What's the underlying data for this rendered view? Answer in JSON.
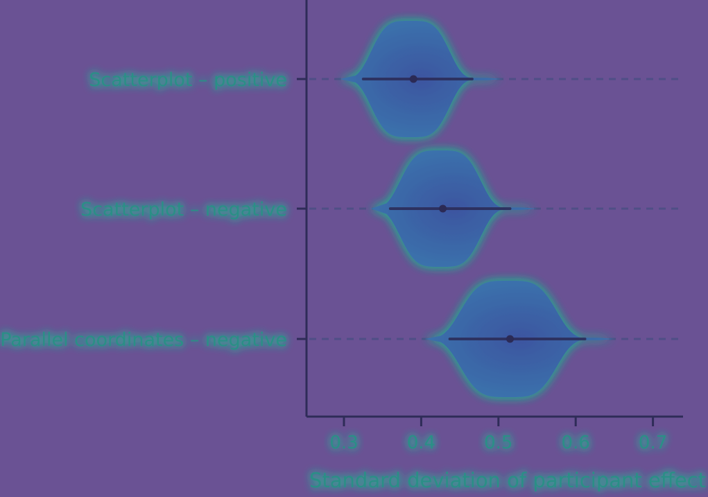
{
  "colors": {
    "background": "#6a5294",
    "axis": "#2f2c58",
    "violin": "#3a6aa6",
    "violin_core": "#3c5aa0",
    "glow": "#2aa58f",
    "text": "#2c8f86",
    "interval": "#2b2a55",
    "gridline": "#4f4f86"
  },
  "chart_data": {
    "type": "violin",
    "title": "",
    "xlabel": "Standard deviation of participant effect",
    "ylabel": "",
    "xlim": [
      0.25,
      0.74
    ],
    "xticks": [
      0.3,
      0.4,
      0.5,
      0.6,
      0.7
    ],
    "xtick_labels": [
      "0.3",
      "0.4",
      "0.5",
      "0.6",
      "0.7"
    ],
    "grid": "dashed horizontal guide per category",
    "categories": [
      "Scatterplot – positive",
      "Scatterplot – negative",
      "Parallel coordinates – negative"
    ],
    "series": [
      {
        "category": "Scatterplot – positive",
        "median": 0.39,
        "interval": [
          0.325,
          0.466
        ],
        "density_range": [
          0.315,
          0.485
        ],
        "peak": 0.386,
        "spread": 0.035
      },
      {
        "category": "Scatterplot – negative",
        "median": 0.428,
        "interval": [
          0.36,
          0.515
        ],
        "density_range": [
          0.355,
          0.53
        ],
        "peak": 0.425,
        "spread": 0.036
      },
      {
        "category": "Parallel coordinates – negative",
        "median": 0.515,
        "interval": [
          0.437,
          0.612
        ],
        "density_range": [
          0.425,
          0.63
        ],
        "peak": 0.513,
        "spread": 0.043
      }
    ]
  }
}
